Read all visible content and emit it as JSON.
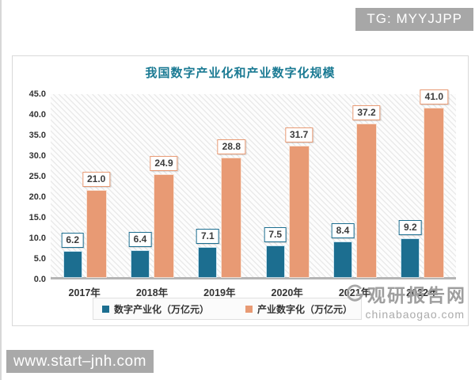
{
  "page": {
    "tg_badge": "TG: MYYJJPP",
    "bottom_banner": "www.start–jnh.com"
  },
  "watermark": {
    "site_name": "观研报告网",
    "site_url": "chinabaogao.com"
  },
  "colors": {
    "series1": "#1c6e90",
    "series2": "#e89a74",
    "title": "#1a7a93",
    "badge_bg": "#a7a7a7",
    "banner_bg": "#a9a9a9",
    "axis_line": "#b5b5b5"
  },
  "chart_data": {
    "type": "bar",
    "title": "我国数字产业化和产业数字化规模",
    "categories": [
      "2017年",
      "2018年",
      "2019年",
      "2020年",
      "2021年",
      "2022年"
    ],
    "series": [
      {
        "name": "数字产业化（万亿元）",
        "color": "#1c6e90",
        "values": [
          6.2,
          6.4,
          7.1,
          7.5,
          8.4,
          9.2
        ]
      },
      {
        "name": "产业数字化（万亿元）",
        "color": "#e89a74",
        "values": [
          21.0,
          24.9,
          28.8,
          31.7,
          37.2,
          41.0
        ]
      }
    ],
    "ylabel": "",
    "xlabel": "",
    "ylim": [
      0,
      45
    ],
    "y_tick_step": 5,
    "y_tick_labels": [
      "45.0",
      "40.0",
      "35.0",
      "30.0",
      "25.0",
      "20.0",
      "15.0",
      "10.0",
      "5.0",
      "0.0"
    ],
    "value_labels_shown": true,
    "grid": false,
    "plot_background": "diagonal-hatch",
    "legend_position": "bottom"
  }
}
